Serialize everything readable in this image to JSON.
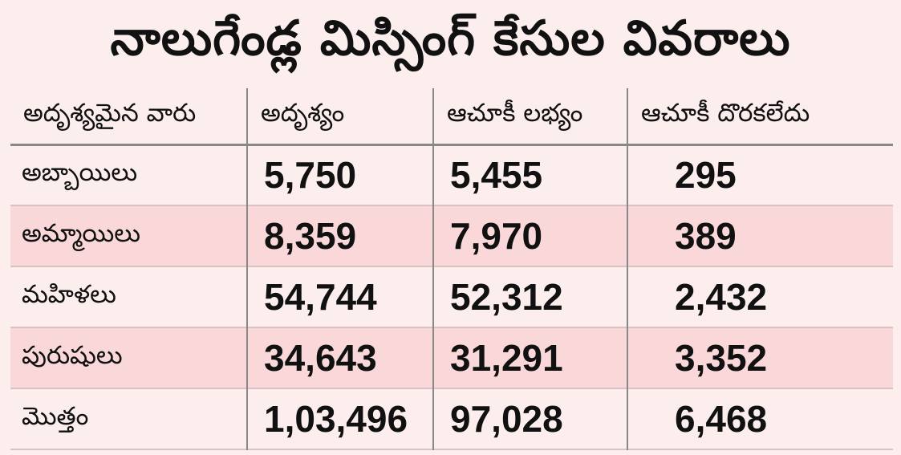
{
  "title": "నాలుగేండ్ల మిస్సింగ్ కేసుల వివరాలు",
  "chart_data": {
    "type": "table",
    "title": "నాలుగేండ్ల మిస్సింగ్ కేసుల వివరాలు",
    "columns": [
      "అదృశ్యమైన వారు",
      "అదృశ్యం",
      "ఆచూకీ లభ్యం",
      "ఆచూకీ దొరకలేదు"
    ],
    "rows": [
      {
        "label": "అబ్బాయిలు",
        "values": [
          "5,750",
          "5,455",
          "295"
        ]
      },
      {
        "label": "అమ్మాయిలు",
        "values": [
          "8,359",
          "7,970",
          "389"
        ]
      },
      {
        "label": "మహిళలు",
        "values": [
          "54,744",
          "52,312",
          "2,432"
        ]
      },
      {
        "label": "పురుషులు",
        "values": [
          "34,643",
          "31,291",
          "3,352"
        ]
      },
      {
        "label": "మొత్తం",
        "values": [
          "1,03,496",
          "97,028",
          "6,468"
        ]
      }
    ]
  },
  "colors": {
    "background": "#fdeeee",
    "row_highlight": "#fad8da",
    "grid": "#888888",
    "text": "#111111"
  }
}
